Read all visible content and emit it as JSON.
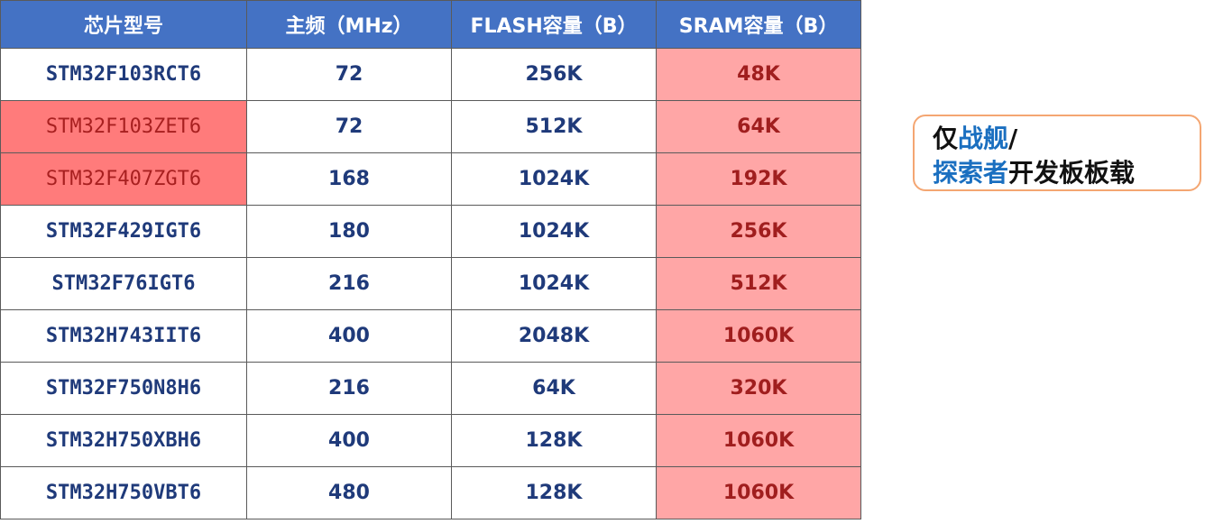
{
  "table": {
    "headers": [
      "芯片型号",
      "主频（MHz）",
      "FLASH容量（B）",
      "SRAM容量（B）"
    ],
    "rows": [
      {
        "model": "STM32F103RCT6",
        "freq": "72",
        "flash": "256K",
        "sram": "48K",
        "highlight": false
      },
      {
        "model": "STM32F103ZET6",
        "freq": "72",
        "flash": "512K",
        "sram": "64K",
        "highlight": true
      },
      {
        "model": "STM32F407ZGT6",
        "freq": "168",
        "flash": "1024K",
        "sram": "192K",
        "highlight": true
      },
      {
        "model": "STM32F429IGT6",
        "freq": "180",
        "flash": "1024K",
        "sram": "256K",
        "highlight": false
      },
      {
        "model": "STM32F76IGT6",
        "freq": "216",
        "flash": "1024K",
        "sram": "512K",
        "highlight": false
      },
      {
        "model": "STM32H743IIT6",
        "freq": "400",
        "flash": "2048K",
        "sram": "1060K",
        "highlight": false
      },
      {
        "model": "STM32F750N8H6",
        "freq": "216",
        "flash": "64K",
        "sram": "320K",
        "highlight": false
      },
      {
        "model": "STM32H750XBH6",
        "freq": "400",
        "flash": "128K",
        "sram": "1060K",
        "highlight": false
      },
      {
        "model": "STM32H750VBT6",
        "freq": "480",
        "flash": "128K",
        "sram": "1060K",
        "highlight": false
      }
    ]
  },
  "note": {
    "line1_prefix": "仅",
    "line1_blue": "战舰",
    "line1_suffix": "/",
    "line2_blue": "探索者",
    "line2_suffix": "开发板板载"
  },
  "colors": {
    "header_bg": "#4472c4",
    "sram_col_bg": "#ffa6a6",
    "highlight_bg": "#ff7b7b",
    "note_border": "#f4a672",
    "note_blue": "#1a6fc0"
  }
}
